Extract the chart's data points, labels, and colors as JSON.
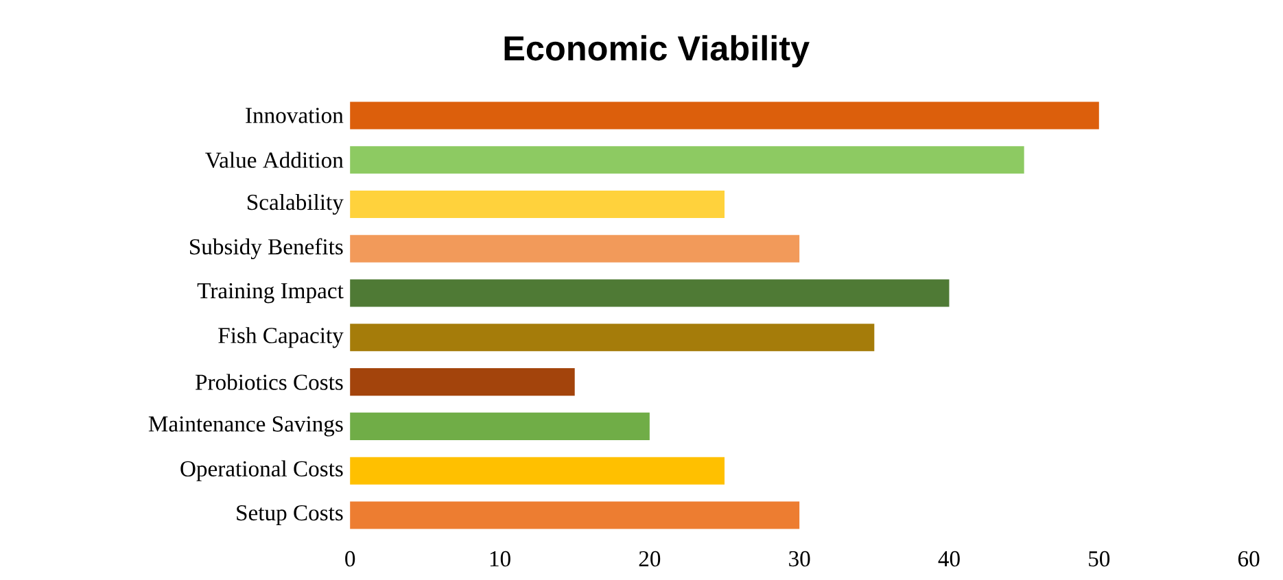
{
  "chart_data": {
    "type": "bar",
    "orientation": "horizontal",
    "title": "Economic Viability",
    "categories": [
      "Innovation",
      "Value Addition",
      "Scalability",
      "Subsidy Benefits",
      "Training Impact",
      "Fish Capacity",
      "Probiotics Costs",
      "Maintenance Savings",
      "Operational Costs",
      "Setup Costs"
    ],
    "values": [
      50,
      45,
      25,
      30,
      40,
      35,
      15,
      20,
      25,
      30
    ],
    "colors": [
      "#dc5f0c",
      "#8dca62",
      "#ffd23c",
      "#f29a5a",
      "#4f7a35",
      "#a57c0a",
      "#a3440c",
      "#70ad47",
      "#ffc000",
      "#ed7d31"
    ],
    "xlim": [
      0,
      60
    ],
    "xticks": [
      0,
      10,
      20,
      30,
      40,
      50,
      60
    ]
  }
}
